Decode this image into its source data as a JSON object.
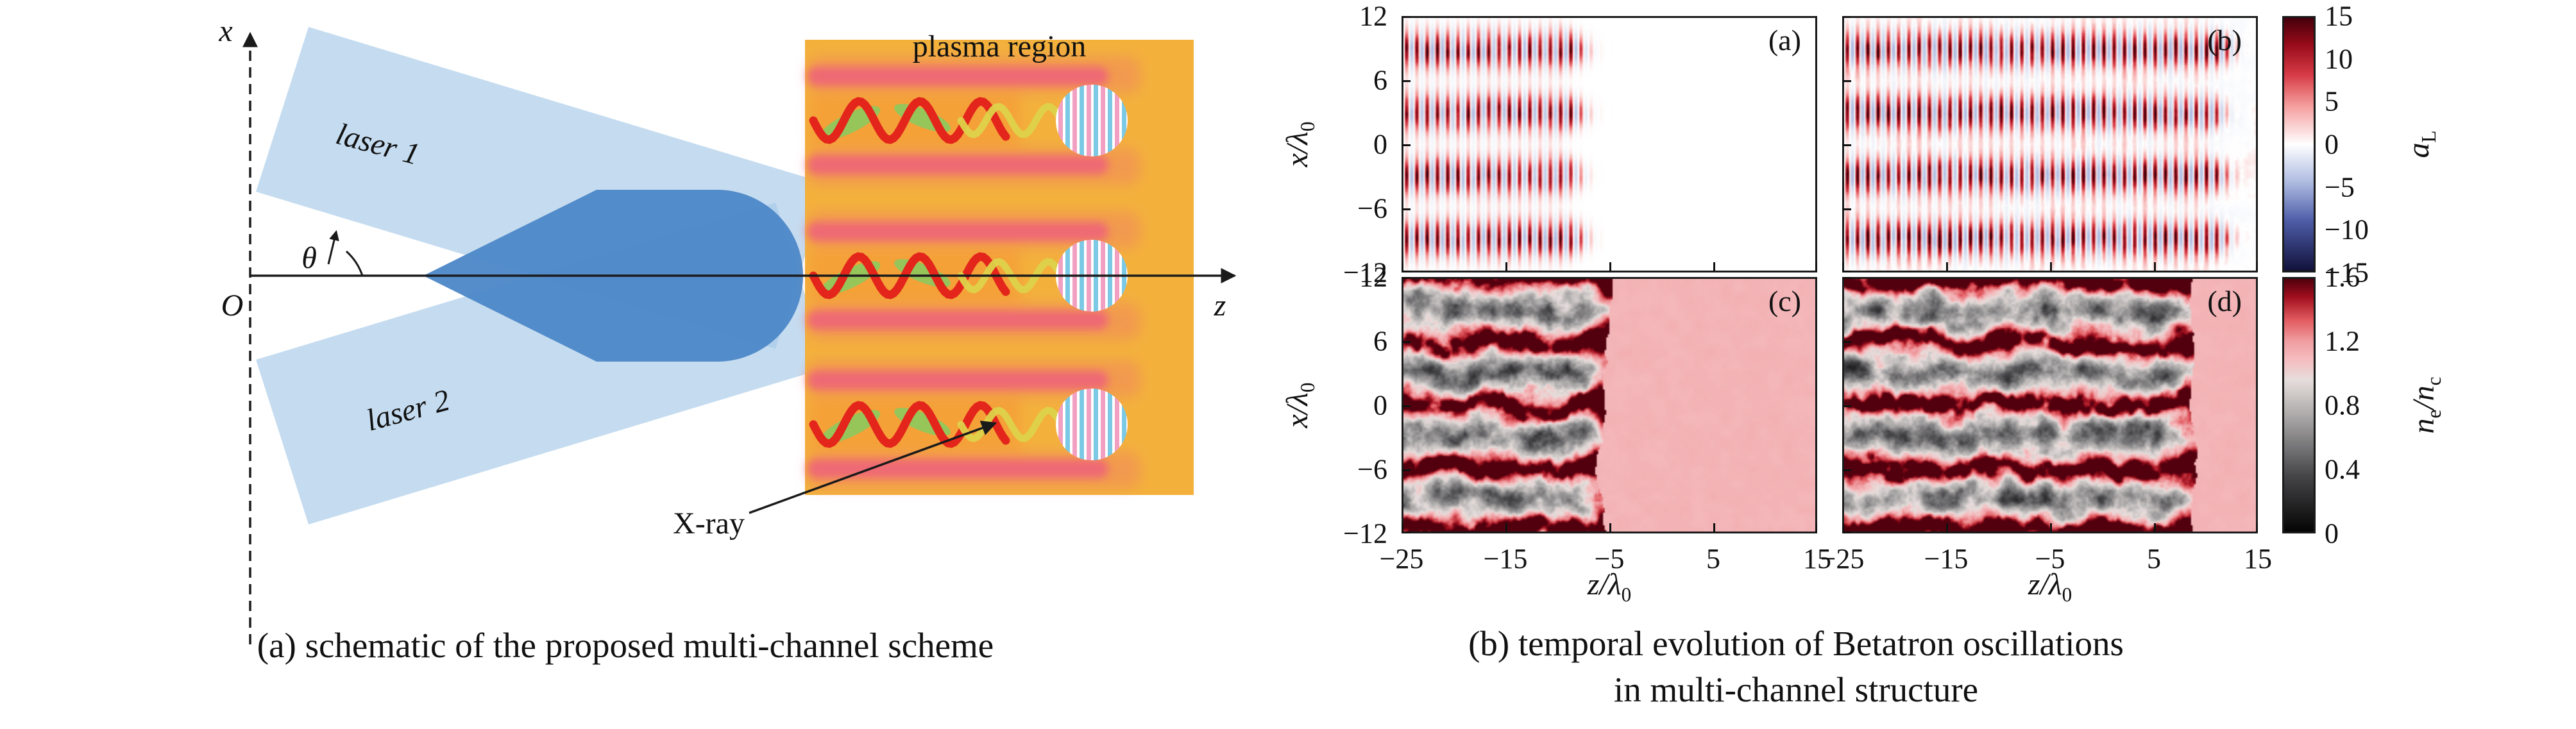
{
  "figure": {
    "captions": {
      "left": "(a) schematic of the proposed multi-channel scheme",
      "right_line1": "(b) temporal evolution of Betatron oscillations",
      "right_line2": "in multi-channel structure"
    }
  },
  "schematic": {
    "region_title": "plasma region",
    "axis_x": "x",
    "axis_z": "z",
    "origin": "O",
    "angle": "θ",
    "laser1": "laser 1",
    "laser2": "laser 2",
    "xray": "X-ray",
    "colors": {
      "laser_beam": "#a6c9e8",
      "laser_overlap": "#4e88c8",
      "plasma": "#f3b13c",
      "channel_pink": "#ee5f7e",
      "wave_red": "#e3251c",
      "wave_yellow": "#ddd24a",
      "lobe_green": "#8cc95e"
    }
  },
  "chart_data": {
    "type": "heatmap",
    "layout": "2x2 panels, shared x/y axes, two vertical colorbars on right, legend off",
    "x_axis": {
      "label_main": "z/λ",
      "label_sub": "0",
      "range": [
        -25,
        15
      ],
      "tick_labels": [
        "−25",
        "−15",
        "−5",
        "5",
        "15"
      ]
    },
    "y_axis": {
      "label_main": "x/λ",
      "label_sub": "0",
      "range": [
        -12,
        12
      ],
      "tick_labels": [
        "12",
        "6",
        "0",
        "−6",
        "−12"
      ]
    },
    "panels": [
      {
        "key": "a",
        "label": "(a)",
        "row": "top",
        "quantity": "laser field aL",
        "description": "four horizontal striped laser channels centered near x/λ0 = ±3 and ±9, occupying −25 ≤ z/λ0 ≲ −8, alternating-sign vertical striations up to |aL|≈15 on white background"
      },
      {
        "key": "b",
        "label": "(b)",
        "row": "top",
        "quantity": "laser field aL",
        "description": "same four striped channels extended across −25 ≤ z/λ0 ≲ +12 with bowed fronts, faint pink noisy background"
      },
      {
        "key": "c",
        "label": "(c)",
        "row": "bottom",
        "quantity": "electron density ne/nc",
        "description": "turbulent multi-channel density with dark evacuated channels and dark-red walls for z/λ0 ≲ −5, uniform pink plasma ne/nc ≈ 1.1 ahead"
      },
      {
        "key": "d",
        "label": "(d)",
        "row": "bottom",
        "quantity": "electron density ne/nc",
        "description": "channel walls and Betatron structure extending to z/λ0 ≈ +9, uniform pink plasma ahead"
      }
    ],
    "colorbars": [
      {
        "for": "top row",
        "label_main": "a",
        "label_sub": "L",
        "range": [
          -15,
          15
        ],
        "tick_labels": [
          "15",
          "10",
          "5",
          "0",
          "−5",
          "−10",
          "−15"
        ]
      },
      {
        "for": "bottom row",
        "label_parts": [
          "n",
          "e",
          "/n",
          "c"
        ],
        "range": [
          0,
          1.6
        ],
        "tick_labels": [
          "1.6",
          "1.2",
          "0.8",
          "0.4",
          "0"
        ]
      }
    ]
  }
}
